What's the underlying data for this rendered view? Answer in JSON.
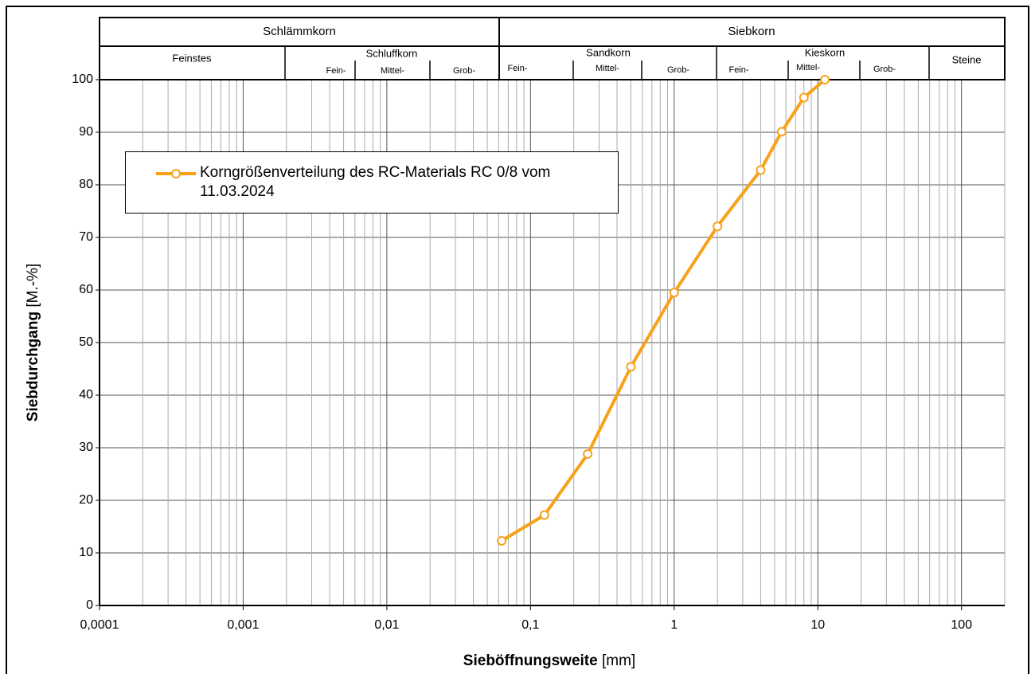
{
  "chart_data": {
    "type": "line",
    "x_label": "Sieböffnungsweite",
    "x_unit": "[mm]",
    "y_label": "Siebdurchgang",
    "y_unit": "[M.-%]",
    "header": {
      "schlaemmkorn": "Schlämmkorn",
      "siebkorn": "Siebkorn",
      "feinstes": "Feinstes",
      "schluffkorn": "Schluffkorn",
      "sandkorn": "Sandkorn",
      "kieskorn": "Kieskorn",
      "steine": "Steine",
      "fein": "Fein-",
      "mittel": "Mittel-",
      "grob": "Grob-"
    },
    "log_x": true,
    "xlim": [
      0.0001,
      200
    ],
    "xticks": [
      {
        "value": 0.0001,
        "label": "0,0001"
      },
      {
        "value": 0.001,
        "label": "0,001"
      },
      {
        "value": 0.01,
        "label": "0,01"
      },
      {
        "value": 0.1,
        "label": "0,1"
      },
      1,
      10,
      100
    ],
    "ylim": [
      0,
      100
    ],
    "yticks": [
      0,
      10,
      20,
      30,
      40,
      50,
      60,
      70,
      80,
      90,
      100
    ],
    "grid": true,
    "series": [
      {
        "name": "Korngrößenverteilung des RC-Materials RC 0/8 vom 11.03.2024",
        "color": "#f7a21b",
        "x": [
          0.063,
          0.125,
          0.25,
          0.5,
          1,
          2,
          4,
          5.6,
          8,
          11.2
        ],
        "values": [
          12.3,
          17.2,
          28.8,
          45.4,
          59.5,
          72.1,
          82.8,
          90.1,
          96.6,
          100
        ]
      }
    ]
  }
}
